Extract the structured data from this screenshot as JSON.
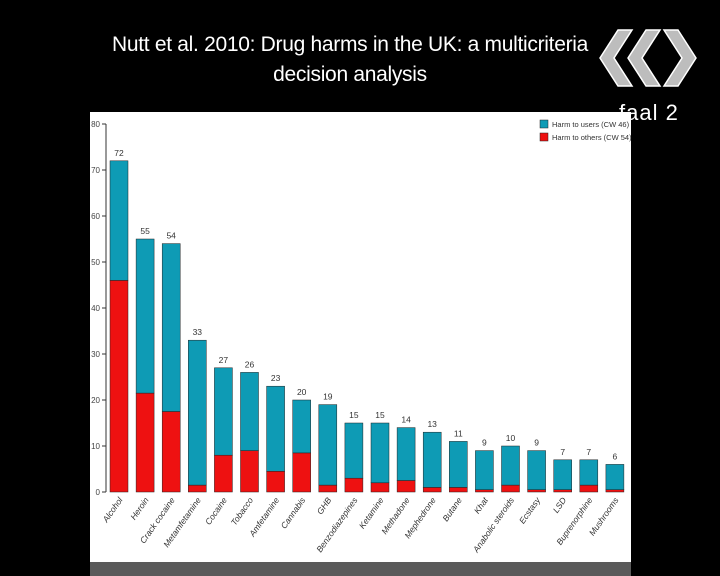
{
  "slide": {
    "title_line1": "Nutt et al. 2010: Drug harms in the UK: a multicriteria",
    "title_line2": "decision analysis"
  },
  "logo": {
    "text": "faal 2",
    "icon": "logo-mark-icon"
  },
  "colors": {
    "users": "#0e9bb5",
    "others": "#ee1111"
  },
  "chart_data": {
    "type": "bar",
    "stacked": true,
    "title": "",
    "xlabel": "",
    "ylabel": "",
    "ylim": [
      0,
      80
    ],
    "yticks": [
      0,
      10,
      20,
      30,
      40,
      50,
      60,
      70,
      80
    ],
    "grid": false,
    "legend_position": "top-right",
    "categories": [
      "Alcohol",
      "Heroin",
      "Crack cocaine",
      "Metamfetamine",
      "Cocaine",
      "Tobacco",
      "Amfetamine",
      "Cannabis",
      "GHB",
      "Benzodiazepines",
      "Ketamine",
      "Methadone",
      "Mephedrone",
      "Butane",
      "Khat",
      "Anabolic steroids",
      "Ecstasy",
      "LSD",
      "Buprenorphine",
      "Mushrooms"
    ],
    "totals": [
      72,
      55,
      54,
      33,
      27,
      26,
      23,
      20,
      19,
      15,
      15,
      14,
      13,
      11,
      9,
      10,
      9,
      7,
      7,
      6
    ],
    "series": [
      {
        "name": "Harm to others (CW 54)",
        "color": "#ee1111",
        "values": [
          46,
          21.5,
          17.5,
          1.5,
          8,
          9,
          4.5,
          8.5,
          1.5,
          3,
          2,
          2.5,
          1,
          1,
          0.5,
          1.5,
          0.5,
          0.5,
          1.5,
          0.5
        ]
      },
      {
        "name": "Harm to users (CW 46)",
        "color": "#0e9bb5",
        "values": [
          26,
          33.5,
          36.5,
          31.5,
          19,
          17,
          18.5,
          11.5,
          17.5,
          12,
          13,
          11.5,
          12,
          10,
          8.5,
          8.5,
          8.5,
          6.5,
          5.5,
          5.5
        ]
      }
    ],
    "legend": [
      {
        "label": "Harm to users (CW 46)",
        "color": "#0e9bb5"
      },
      {
        "label": "Harm to others (CW 54)",
        "color": "#ee1111"
      }
    ]
  }
}
